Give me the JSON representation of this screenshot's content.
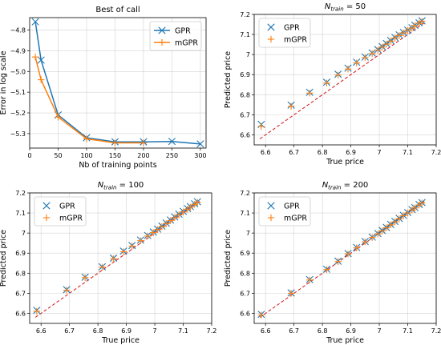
{
  "colors": {
    "gpr": "#1f77b4",
    "mgpr": "#ff7f0e",
    "diagonal": "#d62728"
  },
  "icons": {
    "gpr_marker": "x-marker-icon",
    "mgpr_marker": "plus-marker-icon"
  },
  "chart_data": [
    {
      "type": "line",
      "title": "Best of call",
      "xlabel": "Nb of training points",
      "ylabel": "Error in log scale",
      "xlim": [
        0,
        310
      ],
      "ylim": [
        -5.37,
        -4.74
      ],
      "xticks": [
        0,
        50,
        100,
        150,
        200,
        250,
        300
      ],
      "yticks": [
        -5.3,
        -5.2,
        -5.1,
        -5.0,
        -4.9,
        -4.8
      ],
      "ytick_labels": [
        "−5.3",
        "−5.2",
        "−5.1",
        "−5.0",
        "−4.9",
        "−4.8"
      ],
      "grid": true,
      "legend_position": "top-right",
      "series": [
        {
          "name": "GPR",
          "marker": "x",
          "x": [
            10,
            20,
            50,
            100,
            150,
            200,
            250,
            300
          ],
          "y": [
            -4.76,
            -4.945,
            -5.21,
            -5.32,
            -5.34,
            -5.34,
            -5.338,
            -5.35
          ]
        },
        {
          "name": "mGPR",
          "marker": "+",
          "x": [
            10,
            20,
            50,
            100,
            150,
            200
          ],
          "y": [
            -4.93,
            -5.04,
            -5.22,
            -5.325,
            -5.345,
            -5.345
          ]
        }
      ]
    },
    {
      "type": "scatter",
      "title_base": "N",
      "title_sub": "train",
      "title_rest": " = 50",
      "xlabel": "True price",
      "ylabel": "Predicted price",
      "xlim": [
        6.56,
        7.2
      ],
      "ylim": [
        6.55,
        7.2
      ],
      "xticks": [
        6.6,
        6.7,
        6.8,
        6.9,
        7.0,
        7.1,
        7.2
      ],
      "yticks": [
        6.6,
        6.7,
        6.8,
        6.9,
        7.0,
        7.1,
        7.2
      ],
      "grid": true,
      "legend_position": "top-left",
      "diagonal": [
        6.58,
        7.16
      ],
      "series": [
        {
          "name": "GPR",
          "marker": "x",
          "x": [
            6.585,
            6.69,
            6.755,
            6.815,
            6.855,
            6.89,
            6.92,
            6.95,
            6.975,
            6.995,
            7.01,
            7.025,
            7.04,
            7.055,
            7.07,
            7.085,
            7.1,
            7.115,
            7.125,
            7.14,
            7.15
          ],
          "y": [
            6.652,
            6.748,
            6.812,
            6.862,
            6.902,
            6.932,
            6.962,
            6.988,
            7.008,
            7.025,
            7.04,
            7.055,
            7.07,
            7.085,
            7.098,
            7.11,
            7.122,
            7.134,
            7.146,
            7.158,
            7.168
          ]
        },
        {
          "name": "mGPR",
          "marker": "+",
          "x": [
            6.585,
            6.69,
            6.755,
            6.815,
            6.855,
            6.89,
            6.92,
            6.95,
            6.975,
            6.995,
            7.01,
            7.025,
            7.04,
            7.055,
            7.07,
            7.085,
            7.1,
            7.115,
            7.125,
            7.14,
            7.15
          ],
          "y": [
            6.642,
            6.742,
            6.808,
            6.858,
            6.898,
            6.928,
            6.958,
            6.985,
            7.005,
            7.022,
            7.037,
            7.052,
            7.067,
            7.082,
            7.095,
            7.108,
            7.12,
            7.132,
            7.144,
            7.156,
            7.166
          ]
        }
      ]
    },
    {
      "type": "scatter",
      "title_base": "N",
      "title_sub": "train",
      "title_rest": " = 100",
      "xlabel": "True price",
      "ylabel": "Predicted price",
      "xlim": [
        6.56,
        7.2
      ],
      "ylim": [
        6.55,
        7.2
      ],
      "xticks": [
        6.6,
        6.7,
        6.8,
        6.9,
        7.0,
        7.1,
        7.2
      ],
      "yticks": [
        6.6,
        6.7,
        6.8,
        6.9,
        7.0,
        7.1,
        7.2
      ],
      "grid": true,
      "legend_position": "top-left",
      "diagonal": [
        6.58,
        7.16
      ],
      "series": [
        {
          "name": "GPR",
          "marker": "x",
          "x": [
            6.585,
            6.69,
            6.755,
            6.815,
            6.855,
            6.89,
            6.92,
            6.95,
            6.975,
            6.995,
            7.01,
            7.025,
            7.04,
            7.055,
            7.07,
            7.085,
            7.1,
            7.115,
            7.125,
            7.14,
            7.15
          ],
          "y": [
            6.615,
            6.718,
            6.78,
            6.832,
            6.875,
            6.91,
            6.938,
            6.965,
            6.988,
            7.005,
            7.02,
            7.035,
            7.05,
            7.065,
            7.08,
            7.094,
            7.108,
            7.122,
            7.132,
            7.146,
            7.156
          ]
        },
        {
          "name": "mGPR",
          "marker": "+",
          "x": [
            6.585,
            6.69,
            6.755,
            6.815,
            6.855,
            6.89,
            6.92,
            6.95,
            6.975,
            6.995,
            7.01,
            7.025,
            7.04,
            7.055,
            7.07,
            7.085,
            7.1,
            7.115,
            7.125,
            7.14,
            7.15
          ],
          "y": [
            6.61,
            6.715,
            6.778,
            6.83,
            6.872,
            6.907,
            6.935,
            6.962,
            6.985,
            7.002,
            7.017,
            7.032,
            7.047,
            7.062,
            7.077,
            7.091,
            7.105,
            7.119,
            7.129,
            7.143,
            7.153
          ]
        }
      ]
    },
    {
      "type": "scatter",
      "title_base": "N",
      "title_sub": "train",
      "title_rest": " = 200",
      "xlabel": "True price",
      "ylabel": "Predicted price",
      "xlim": [
        6.56,
        7.2
      ],
      "ylim": [
        6.55,
        7.2
      ],
      "xticks": [
        6.6,
        6.7,
        6.8,
        6.9,
        7.0,
        7.1,
        7.2
      ],
      "yticks": [
        6.6,
        6.7,
        6.8,
        6.9,
        7.0,
        7.1,
        7.2
      ],
      "grid": true,
      "legend_position": "top-left",
      "diagonal": [
        6.58,
        7.16
      ],
      "series": [
        {
          "name": "GPR",
          "marker": "x",
          "x": [
            6.585,
            6.69,
            6.755,
            6.815,
            6.855,
            6.89,
            6.92,
            6.95,
            6.975,
            6.995,
            7.01,
            7.025,
            7.04,
            7.055,
            7.07,
            7.085,
            7.1,
            7.115,
            7.125,
            7.14,
            7.15
          ],
          "y": [
            6.595,
            6.702,
            6.768,
            6.82,
            6.86,
            6.898,
            6.928,
            6.958,
            6.98,
            6.998,
            7.013,
            7.028,
            7.043,
            7.058,
            7.073,
            7.088,
            7.102,
            7.117,
            7.127,
            7.142,
            7.152
          ]
        },
        {
          "name": "mGPR",
          "marker": "+",
          "x": [
            6.585,
            6.69,
            6.755,
            6.815,
            6.855,
            6.89,
            6.92,
            6.95,
            6.975,
            6.995,
            7.01,
            7.025,
            7.04,
            7.055,
            7.07,
            7.085,
            7.1,
            7.115,
            7.125,
            7.14,
            7.15
          ],
          "y": [
            6.592,
            6.7,
            6.766,
            6.818,
            6.858,
            6.896,
            6.926,
            6.956,
            6.978,
            6.996,
            7.011,
            7.026,
            7.041,
            7.056,
            7.071,
            7.086,
            7.1,
            7.115,
            7.125,
            7.14,
            7.15
          ]
        }
      ]
    }
  ]
}
